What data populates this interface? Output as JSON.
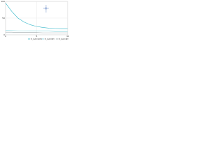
{
  "chart_data": {
    "type": "line",
    "x": [
      0,
      1,
      2,
      3,
      4,
      5,
      6,
      7,
      8,
      9,
      10
    ],
    "series": [
      {
        "name": "V_GS=10V",
        "color": "#2fb5c8",
        "values": [
          95,
          70,
          50,
          38,
          30,
          25,
          22,
          20,
          19,
          18,
          18
        ]
      },
      {
        "name": "V_GS=6V",
        "color": "#7fd3de",
        "values": [
          14,
          13,
          12,
          12,
          11,
          11,
          11,
          11,
          10,
          10,
          10
        ]
      },
      {
        "name": "V_GS=4V",
        "color": "#9aa5a8",
        "values": [
          8,
          8,
          7,
          7,
          7,
          7,
          6,
          6,
          6,
          6,
          6
        ]
      }
    ],
    "xlim": [
      0,
      10
    ],
    "xticks": [
      0,
      5,
      10
    ],
    "ylim": [
      0,
      100
    ],
    "yticks": [
      0,
      50,
      100
    ],
    "grid": true
  }
}
